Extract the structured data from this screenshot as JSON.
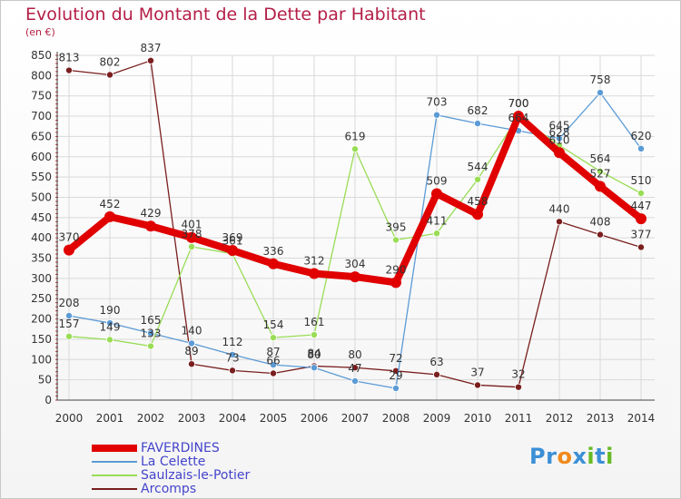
{
  "chart_data": {
    "type": "line",
    "title": "Evolution du Montant de la Dette par Habitant",
    "subtitle": "(en €)",
    "categories": [
      "2000",
      "2001",
      "2002",
      "2003",
      "2004",
      "2005",
      "2006",
      "2007",
      "2008",
      "2009",
      "2010",
      "2011",
      "2012",
      "2013",
      "2014"
    ],
    "ylim": [
      0,
      850
    ],
    "yticks": [
      0,
      50,
      100,
      150,
      200,
      250,
      300,
      350,
      400,
      450,
      500,
      550,
      600,
      650,
      700,
      750,
      800,
      850
    ],
    "grid": true,
    "legend_position": "bottom-left",
    "series": [
      {
        "name": "FAVERDINES",
        "color": "#e00000",
        "values": [
          370,
          452,
          429,
          401,
          369,
          336,
          312,
          304,
          290,
          509,
          458,
          700,
          610,
          527,
          447
        ],
        "labels": [
          "370",
          "452",
          "429",
          "401",
          "369",
          "336",
          "312",
          "304",
          "290",
          "509",
          "458",
          "700",
          "610",
          "527",
          "447"
        ]
      },
      {
        "name": "La Celette",
        "color": "#5b9bd5",
        "values": [
          208,
          190,
          165,
          140,
          112,
          87,
          80,
          47,
          29,
          703,
          682,
          664,
          645,
          758,
          620
        ],
        "labels": [
          "208",
          "190",
          "165",
          "140",
          "112",
          "87",
          "80",
          "47",
          "29",
          "703",
          "682",
          "664",
          "645",
          "758",
          "620"
        ]
      },
      {
        "name": "Saulzais-le-Potier",
        "color": "#99dd55",
        "values": [
          157,
          149,
          133,
          378,
          361,
          154,
          161,
          619,
          395,
          411,
          544,
          700,
          628,
          564,
          510
        ],
        "labels": [
          "157",
          "149",
          "133",
          "378",
          "361",
          "154",
          "161",
          "619",
          "395",
          "411",
          "544",
          "700",
          "628",
          "564",
          "510"
        ]
      },
      {
        "name": "Arcomps",
        "color": "#7a1e1e",
        "values": [
          813,
          802,
          837,
          89,
          73,
          66,
          84,
          80,
          72,
          63,
          37,
          32,
          440,
          408,
          377
        ],
        "labels": [
          "813",
          "802",
          "837",
          "89",
          "73",
          "66",
          "84",
          "80",
          "72",
          "63",
          "37",
          "32",
          "440",
          "408",
          "377"
        ]
      }
    ]
  },
  "logo": {
    "letters": [
      "P",
      "r",
      "o",
      "x",
      "i",
      "t",
      "i"
    ],
    "colors": [
      "#3b8fd6",
      "#3b8fd6",
      "#f08a1c",
      "#3b8fd6",
      "#66bb22",
      "#3b8fd6",
      "#66bb22"
    ]
  }
}
